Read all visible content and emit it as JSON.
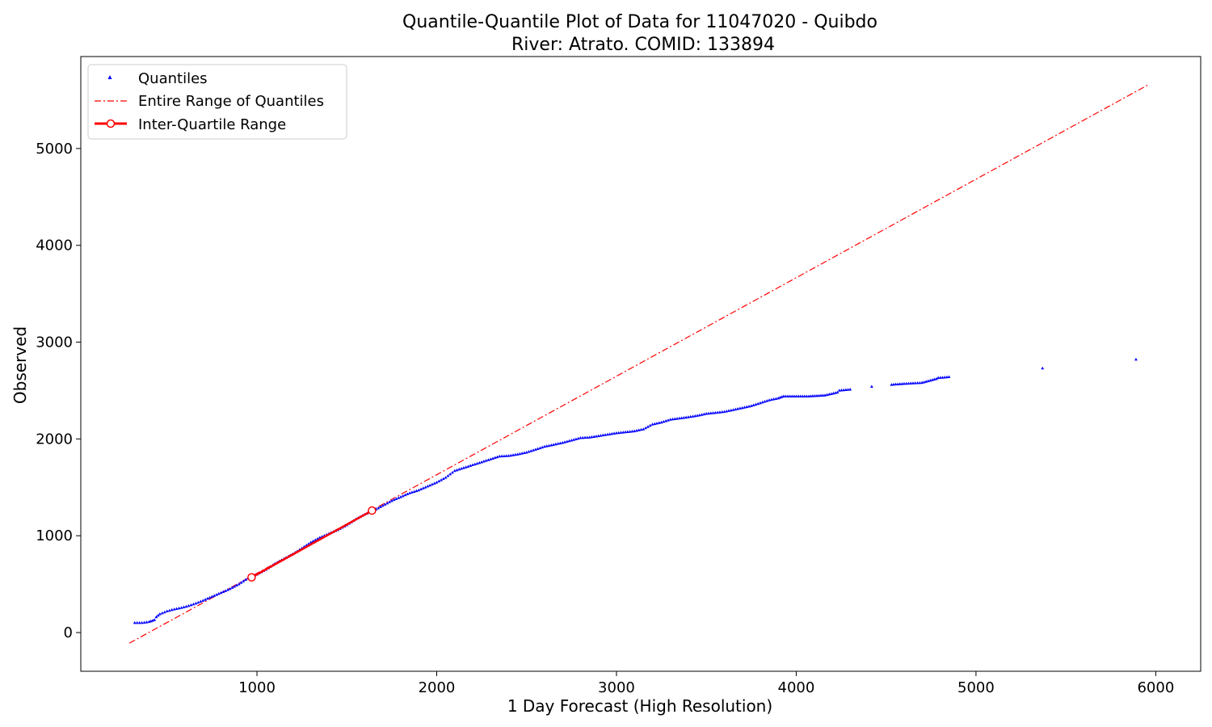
{
  "chart_data": {
    "type": "scatter",
    "title": "Quantile-Quantile Plot of Data for 11047020 - Quibdo",
    "subtitle": "River: Atrato. COMID: 133894",
    "xlabel": "1 Day Forecast (High Resolution)",
    "ylabel": "Observed",
    "xlim": [
      20,
      6250
    ],
    "ylim": [
      -400,
      5950
    ],
    "xticks": [
      1000,
      2000,
      3000,
      4000,
      5000,
      6000
    ],
    "yticks": [
      0,
      1000,
      2000,
      3000,
      4000,
      5000
    ],
    "grid": false,
    "legend_position": "top-left",
    "colors": {
      "quantiles": "#0000ff",
      "reference": "#ff0000",
      "iqr": "#ff0000",
      "iqr_marker_face": "#ffffff"
    },
    "series": [
      {
        "name": "Quantiles",
        "style": "points",
        "x": [
          320,
          360,
          400,
          430,
          440,
          460,
          500,
          540,
          580,
          620,
          660,
          700,
          750,
          800,
          850,
          900,
          950,
          1000,
          1050,
          1100,
          1150,
          1200,
          1250,
          1300,
          1350,
          1400,
          1450,
          1500,
          1550,
          1600,
          1650,
          1700,
          1750,
          1800,
          1850,
          1900,
          1950,
          2000,
          2050,
          2100,
          2150,
          2200,
          2250,
          2300,
          2350,
          2400,
          2450,
          2500,
          2550,
          2600,
          2650,
          2700,
          2750,
          2800,
          2850,
          2900,
          2950,
          3000,
          3050,
          3100,
          3150,
          3200,
          3250,
          3300,
          3400,
          3450,
          3500,
          3550,
          3600,
          3650,
          3700,
          3750,
          3800,
          3850,
          3900,
          3930,
          4000,
          4070,
          4160,
          4230,
          4240,
          4300,
          4420,
          4530,
          4600,
          4700,
          4780,
          4790,
          4850,
          5370,
          5890
        ],
        "y": [
          100,
          100,
          110,
          130,
          160,
          190,
          220,
          240,
          255,
          275,
          300,
          330,
          370,
          410,
          450,
          500,
          560,
          600,
          650,
          710,
          760,
          810,
          870,
          930,
          980,
          1020,
          1060,
          1110,
          1170,
          1220,
          1260,
          1310,
          1360,
          1400,
          1440,
          1470,
          1510,
          1550,
          1600,
          1670,
          1700,
          1730,
          1760,
          1790,
          1820,
          1825,
          1840,
          1860,
          1890,
          1920,
          1940,
          1960,
          1985,
          2010,
          2015,
          2030,
          2045,
          2060,
          2070,
          2080,
          2100,
          2150,
          2170,
          2200,
          2225,
          2240,
          2260,
          2270,
          2280,
          2300,
          2320,
          2340,
          2370,
          2400,
          2420,
          2440,
          2440,
          2440,
          2450,
          2480,
          2500,
          2510,
          2540,
          2560,
          2570,
          2580,
          2620,
          2630,
          2640,
          2730,
          2820
        ]
      },
      {
        "name": "Entire Range of Quantiles",
        "style": "dash-dot",
        "x": [
          290,
          5960
        ],
        "y": [
          -110,
          5660
        ]
      },
      {
        "name": "Inter-Quartile Range",
        "style": "line-with-endpoints",
        "x": [
          970,
          1640
        ],
        "y": [
          570,
          1260
        ]
      }
    ]
  }
}
